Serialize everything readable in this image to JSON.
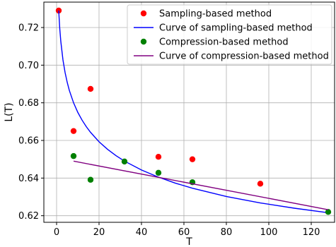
{
  "chart_data": {
    "type": "scatter",
    "title": "",
    "xlabel": "T",
    "ylabel": "L(T)",
    "xlim": [
      -6,
      131
    ],
    "ylim": [
      0.6165,
      0.7335
    ],
    "xticks": [
      0,
      20,
      40,
      60,
      80,
      100,
      120
    ],
    "xtick_labels": [
      "0",
      "20",
      "40",
      "60",
      "80",
      "100",
      "120"
    ],
    "yticks": [
      0.62,
      0.64,
      0.66,
      0.68,
      0.7,
      0.72
    ],
    "ytick_labels": [
      "0.62",
      "0.64",
      "0.66",
      "0.68",
      "0.70",
      "0.72"
    ],
    "grid": true,
    "legend_position": "top-right",
    "series": [
      {
        "name": "Sampling-based method",
        "kind": "scatter",
        "color": "#ff0000",
        "points": [
          [
            1,
            0.729
          ],
          [
            8,
            0.665
          ],
          [
            16,
            0.6874
          ],
          [
            48,
            0.6513
          ],
          [
            64,
            0.65
          ],
          [
            96,
            0.637
          ]
        ]
      },
      {
        "name": "Curve of sampling-based method",
        "kind": "line",
        "color": "#0000ff",
        "points": [
          [
            1,
            0.729
          ],
          [
            1.5,
            0.7193
          ],
          [
            2,
            0.7125
          ],
          [
            3,
            0.7028
          ],
          [
            4,
            0.6961
          ],
          [
            5,
            0.6909
          ],
          [
            6,
            0.6866
          ],
          [
            8,
            0.68
          ],
          [
            10,
            0.6749
          ],
          [
            12,
            0.6708
          ],
          [
            14,
            0.6673
          ],
          [
            16,
            0.6643
          ],
          [
            20,
            0.6593
          ],
          [
            24,
            0.6553
          ],
          [
            28,
            0.6519
          ],
          [
            32,
            0.649
          ],
          [
            40,
            0.6443
          ],
          [
            48,
            0.6405
          ],
          [
            56,
            0.6373
          ],
          [
            64,
            0.6346
          ],
          [
            80,
            0.6302
          ],
          [
            96,
            0.6268
          ],
          [
            112,
            0.624
          ],
          [
            128,
            0.6216
          ]
        ]
      },
      {
        "name": "Compression-based method",
        "kind": "scatter",
        "color": "#008000",
        "points": [
          [
            8,
            0.6517
          ],
          [
            16,
            0.6391
          ],
          [
            32,
            0.6488
          ],
          [
            48,
            0.6428
          ],
          [
            64,
            0.6378
          ],
          [
            128,
            0.622
          ]
        ]
      },
      {
        "name": "Curve of compression-based method",
        "kind": "line",
        "color": "#800080",
        "points": [
          [
            8,
            0.649
          ],
          [
            128,
            0.6232
          ]
        ]
      }
    ]
  }
}
